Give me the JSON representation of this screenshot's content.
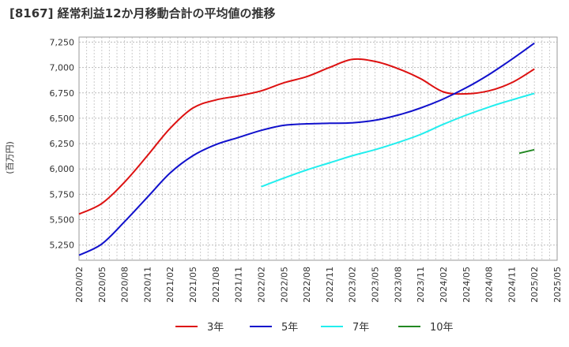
{
  "chart_data": {
    "type": "line",
    "title": "[8167]  経常利益12か月移動合計の平均値の推移",
    "ylabel": "(百万円)",
    "xlabel": "",
    "ylim": [
      5100,
      7300
    ],
    "yticks": [
      5250,
      5500,
      5750,
      6000,
      6250,
      6500,
      6750,
      7000,
      7250
    ],
    "ytick_labels": [
      "5,250",
      "5,500",
      "5,750",
      "6,000",
      "6,250",
      "6,500",
      "6,750",
      "7,000",
      "7,250"
    ],
    "x_categories": [
      "2020/02",
      "2020/05",
      "2020/08",
      "2020/11",
      "2021/02",
      "2021/05",
      "2021/08",
      "2021/11",
      "2022/02",
      "2022/05",
      "2022/08",
      "2022/11",
      "2023/02",
      "2023/05",
      "2023/08",
      "2023/11",
      "2024/02",
      "2024/05",
      "2024/08",
      "2024/11",
      "2025/02",
      "2025/05"
    ],
    "grid": true,
    "legend_position": "bottom",
    "series": [
      {
        "name": "3年",
        "color": "#dd1111",
        "x": [
          "2020/02",
          "2020/05",
          "2020/08",
          "2020/11",
          "2021/02",
          "2021/05",
          "2021/08",
          "2021/11",
          "2022/02",
          "2022/05",
          "2022/08",
          "2022/11",
          "2023/02",
          "2023/05",
          "2023/08",
          "2023/11",
          "2024/02",
          "2024/05",
          "2024/08",
          "2024/11",
          "2025/02"
        ],
        "values": [
          5555,
          5660,
          5870,
          6130,
          6400,
          6600,
          6680,
          6720,
          6770,
          6850,
          6910,
          7000,
          7080,
          7060,
          6990,
          6890,
          6760,
          6740,
          6770,
          6850,
          6985
        ]
      },
      {
        "name": "5年",
        "color": "#1111cc",
        "x": [
          "2020/02",
          "2020/05",
          "2020/08",
          "2020/11",
          "2021/02",
          "2021/05",
          "2021/08",
          "2021/11",
          "2022/02",
          "2022/05",
          "2022/08",
          "2022/11",
          "2023/02",
          "2023/05",
          "2023/08",
          "2023/11",
          "2024/02",
          "2024/05",
          "2024/08",
          "2024/11",
          "2025/02"
        ],
        "values": [
          5150,
          5260,
          5480,
          5720,
          5960,
          6130,
          6240,
          6310,
          6380,
          6430,
          6445,
          6450,
          6455,
          6480,
          6530,
          6600,
          6690,
          6800,
          6930,
          7080,
          7240
        ]
      },
      {
        "name": "7年",
        "color": "#22eeee",
        "x": [
          "2022/02",
          "2022/05",
          "2022/08",
          "2022/11",
          "2023/02",
          "2023/05",
          "2023/08",
          "2023/11",
          "2024/02",
          "2024/05",
          "2024/08",
          "2024/11",
          "2025/02"
        ],
        "values": [
          5825,
          5910,
          5990,
          6060,
          6130,
          6190,
          6260,
          6340,
          6440,
          6530,
          6610,
          6680,
          6745
        ]
      },
      {
        "name": "10年",
        "color": "#228822",
        "x": [
          "2024/12",
          "2025/02"
        ],
        "values": [
          6155,
          6190
        ]
      }
    ]
  }
}
